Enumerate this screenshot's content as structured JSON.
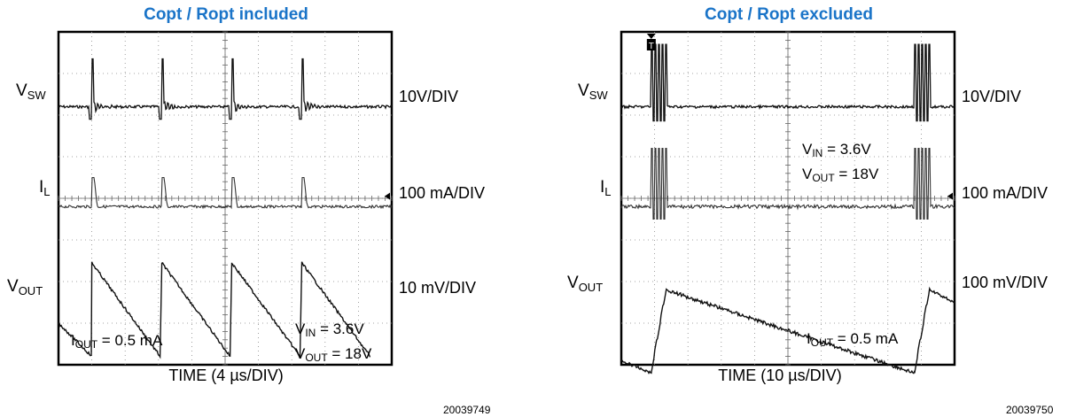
{
  "panels": [
    {
      "title": "Copt / Ropt included",
      "signals": [
        {
          "main": "V",
          "sub": "SW",
          "scale": "10V/DIV"
        },
        {
          "main": "I",
          "sub": "L",
          "scale": "100 mA/DIV"
        },
        {
          "main": "V",
          "sub": "OUT",
          "scale": "10 mV/DIV"
        }
      ],
      "xlabel": "TIME (4 µs/DIV)",
      "iout": {
        "main": "I",
        "sub": "OUT",
        "rest": " = 0.5 mA"
      },
      "vin": {
        "main": "V",
        "sub": "IN",
        "rest": " = 3.6V"
      },
      "vout": {
        "main": "V",
        "sub": "OUT",
        "rest": "  = 18V"
      },
      "code": "20039749"
    },
    {
      "title": "Copt / Ropt excluded",
      "signals": [
        {
          "main": "V",
          "sub": "SW",
          "scale": "10V/DIV"
        },
        {
          "main": "I",
          "sub": "L",
          "scale": "100 mA/DIV"
        },
        {
          "main": "V",
          "sub": "OUT",
          "scale": "100 mV/DIV"
        }
      ],
      "xlabel": "TIME (10 µs/DIV)",
      "iout": {
        "main": "I",
        "sub": "OUT",
        "rest": " = 0.5 mA"
      },
      "vin": {
        "main": "V",
        "sub": "IN",
        "rest": " = 3.6V"
      },
      "vout": {
        "main": "V",
        "sub": "OUT",
        "rest": "  = 18V"
      },
      "code": "20039750",
      "trigger_marker": "T"
    }
  ],
  "chart_data": [
    {
      "type": "line",
      "title": "Copt / Ropt included",
      "xlabel": "TIME (4 µs/DIV)",
      "x_divisions": 10,
      "y_divisions": 8,
      "grid": true,
      "series": [
        {
          "name": "V_SW",
          "scale": "10V/DIV",
          "pulse_times_div": [
            1.0,
            3.1,
            5.2,
            7.3
          ]
        },
        {
          "name": "I_L",
          "scale": "100 mA/DIV",
          "pulse_times_div": [
            1.0,
            3.1,
            5.2,
            7.3
          ]
        },
        {
          "name": "V_OUT",
          "scale": "10 mV/DIV",
          "ramp_start_div": [
            1.0,
            3.1,
            5.2,
            7.3
          ],
          "ramp_end_div": [
            3.05,
            5.15,
            7.25,
            9.35
          ]
        }
      ]
    },
    {
      "type": "line",
      "title": "Copt / Ropt excluded",
      "xlabel": "TIME (10 µs/DIV)",
      "x_divisions": 10,
      "y_divisions": 8,
      "grid": true,
      "series": [
        {
          "name": "V_SW",
          "scale": "10V/DIV",
          "burst_times_div": [
            0.9,
            8.8
          ]
        },
        {
          "name": "I_L",
          "scale": "100 mA/DIV",
          "burst_times_div": [
            0.9,
            8.8
          ]
        },
        {
          "name": "V_OUT",
          "scale": "100 mV/DIV",
          "charge_div": [
            0.9,
            1.35
          ],
          "discharge_end_div": 8.8
        }
      ]
    }
  ]
}
